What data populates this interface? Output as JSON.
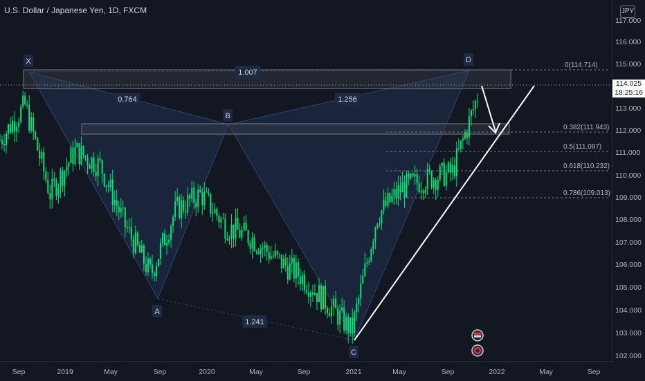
{
  "header": {
    "title": "U.S. Dollar / Japanese Yen, 1D, FXCM",
    "currency": "JPY"
  },
  "price_axis": {
    "ticks": [
      "117.000",
      "116.000",
      "115.000",
      "114.000",
      "113.000",
      "112.000",
      "111.000",
      "110.000",
      "109.000",
      "108.000",
      "107.000",
      "106.000",
      "105.000",
      "104.000",
      "103.000",
      "102.000"
    ]
  },
  "time_axis": {
    "ticks": [
      "Sep",
      "2019",
      "May",
      "Sep",
      "2020",
      "May",
      "Sep",
      "2021",
      "May",
      "Sep",
      "2022",
      "May",
      "Sep"
    ]
  },
  "current_price": {
    "value": "114.025",
    "countdown": "18:25:16"
  },
  "pattern": {
    "points": [
      "X",
      "A",
      "B",
      "C",
      "D"
    ],
    "ratios": {
      "xab": "0.764",
      "abc": "1.256",
      "bcd": "1.241",
      "xad": "1.007"
    }
  },
  "fib_levels": [
    "0(114.714)",
    "0.382(111.943)",
    "0.5(111.087)",
    "0.618(110.232)",
    "0.786(109.013)"
  ],
  "colors": {
    "candles": "#00e676",
    "background": "#131722",
    "pattern_fill": "#1e2a44",
    "trendline": "#ffffff"
  },
  "chart_data": {
    "type": "line",
    "title": "U.S. Dollar / Japanese Yen, 1D, FXCM",
    "x": [
      "2018-09",
      "2018-11",
      "2019-01",
      "2019-03",
      "2019-05",
      "2019-07",
      "2019-09",
      "2019-11",
      "2020-01",
      "2020-03",
      "2020-05",
      "2020-07",
      "2020-09",
      "2020-11",
      "2021-01",
      "2021-03",
      "2021-05",
      "2021-07",
      "2021-09",
      "2021-11"
    ],
    "series": [
      {
        "values": [
          112.0,
          113.6,
          109.5,
          111.5,
          110.8,
          108.0,
          105.8,
          108.8,
          109.5,
          108.0,
          107.5,
          106.5,
          105.7,
          104.5,
          103.2,
          108.5,
          109.8,
          110.2,
          110.5,
          114.0
        ]
      }
    ],
    "ylim": [
      102.0,
      117.5
    ],
    "grid": false
  }
}
